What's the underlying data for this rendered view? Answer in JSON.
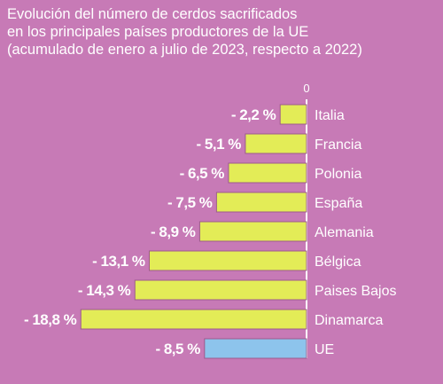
{
  "chart_data": {
    "type": "bar",
    "orientation": "horizontal",
    "title": [
      "Evolución del número de cerdos sacrificados",
      "en los principales países productores de la UE",
      "(acumulado de enero a julio de 2023, respecto a 2022)"
    ],
    "zero_label": "0",
    "categories": [
      "Italia",
      "Francia",
      "Polonia",
      "España",
      "Alemania",
      "Bélgica",
      "Paises Bajos",
      "Dinamarca",
      "UE"
    ],
    "values": [
      -2.2,
      -5.1,
      -6.5,
      -7.5,
      -8.9,
      -13.1,
      -14.3,
      -18.8,
      -8.5
    ],
    "value_labels": [
      "- 2,2 %",
      "- 5,1 %",
      "- 6,5 %",
      "- 7,5 %",
      "- 8,9 %",
      "- 13,1 %",
      "- 14,3 %",
      "- 18,8 %",
      "- 8,5 %"
    ],
    "bar_colors": [
      "#e3ec57",
      "#e3ec57",
      "#e3ec57",
      "#e3ec57",
      "#e3ec57",
      "#e3ec57",
      "#e3ec57",
      "#e3ec57",
      "#8dc4ec"
    ],
    "xlim": [
      -20,
      0
    ],
    "grid": false,
    "legend": "none"
  },
  "colors": {
    "background": "#c77ab6",
    "country_bar": "#e3ec57",
    "eu_bar": "#8dc4ec",
    "bar_outline": "#9c5a8d",
    "axis": "#ffffff",
    "text": "#ffffff"
  }
}
